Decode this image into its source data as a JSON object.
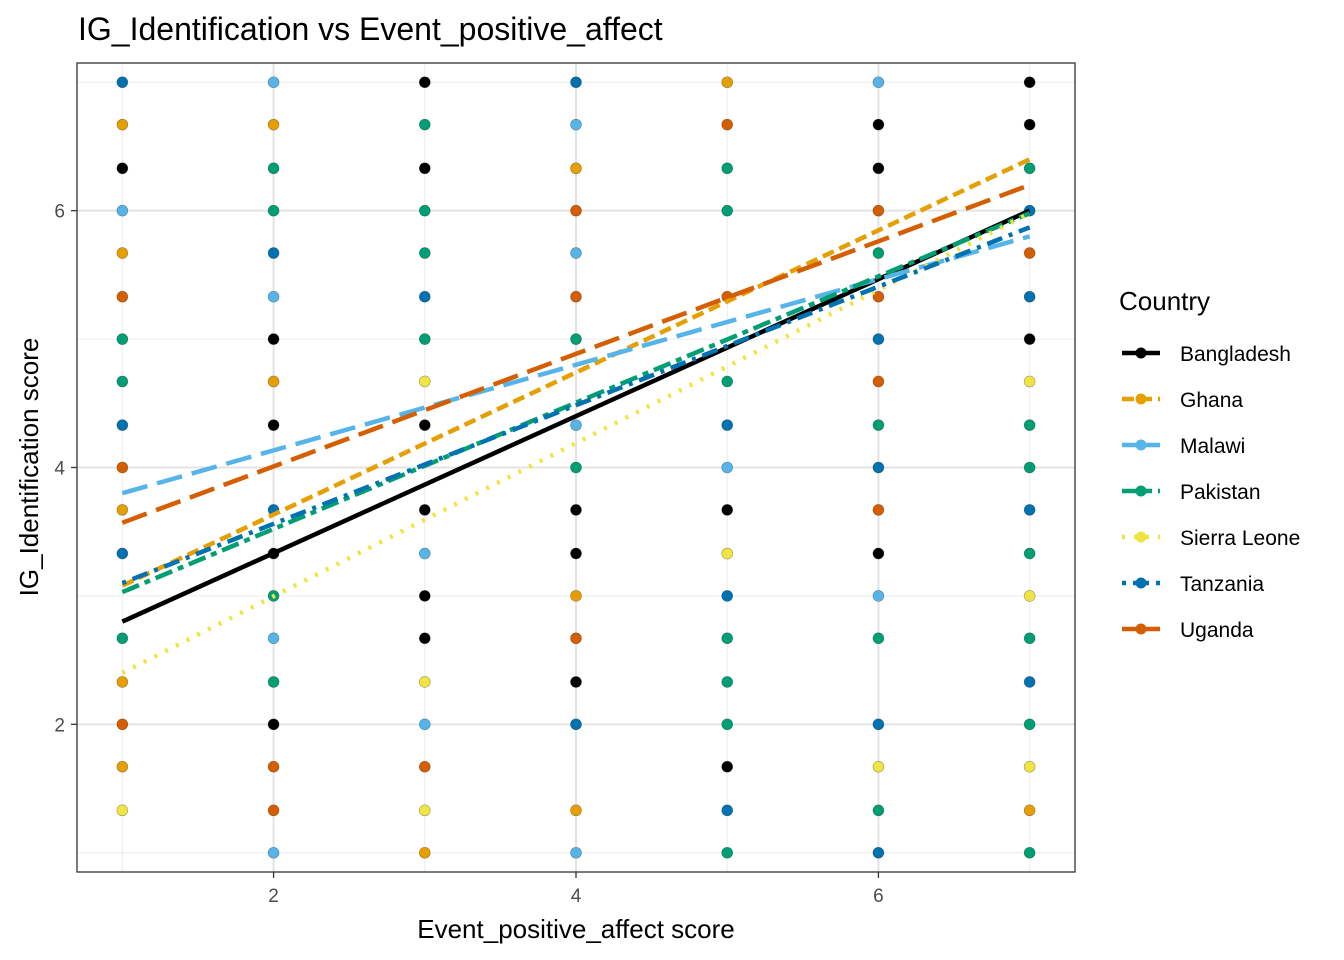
{
  "chart_data": {
    "type": "scatter",
    "title": "IG_Identification vs Event_positive_affect",
    "xlabel": "Event_positive_affect score",
    "ylabel": "IG_Identification score",
    "xlim": [
      0.7,
      7.3
    ],
    "ylim": [
      0.85,
      7.15
    ],
    "x_ticks": [
      2,
      4,
      6
    ],
    "y_ticks": [
      2,
      4,
      6
    ],
    "grid": true,
    "legend": {
      "title": "Country",
      "position": "right"
    },
    "series": [
      {
        "name": "Bangladesh",
        "color": "#000000",
        "dash": "solid",
        "trend": [
          [
            1,
            2.8
          ],
          [
            7,
            6.0
          ]
        ],
        "points": [
          [
            1,
            6.33
          ],
          [
            2,
            5.0
          ],
          [
            2,
            4.33
          ],
          [
            2,
            3.33
          ],
          [
            2,
            2.0
          ],
          [
            3,
            7.0
          ],
          [
            3,
            6.33
          ],
          [
            3,
            4.33
          ],
          [
            3,
            3.67
          ],
          [
            3,
            3.0
          ],
          [
            3,
            2.67
          ],
          [
            4,
            3.67
          ],
          [
            4,
            3.33
          ],
          [
            4,
            2.33
          ],
          [
            5,
            3.67
          ],
          [
            5,
            1.67
          ],
          [
            6,
            6.67
          ],
          [
            6,
            6.33
          ],
          [
            6,
            3.33
          ],
          [
            7,
            7.0
          ],
          [
            7,
            6.67
          ],
          [
            7,
            5.0
          ]
        ]
      },
      {
        "name": "Ghana",
        "color": "#E69F00",
        "dash": "dashed",
        "trend": [
          [
            1,
            3.08
          ],
          [
            7,
            6.4
          ]
        ],
        "points": [
          [
            1,
            6.67
          ],
          [
            1,
            5.67
          ],
          [
            1,
            3.67
          ],
          [
            1,
            2.33
          ],
          [
            1,
            1.67
          ],
          [
            2,
            6.67
          ],
          [
            2,
            4.67
          ],
          [
            3,
            1.0
          ],
          [
            4,
            6.33
          ],
          [
            4,
            3.0
          ],
          [
            4,
            1.33
          ],
          [
            5,
            7.0
          ],
          [
            7,
            1.33
          ]
        ]
      },
      {
        "name": "Malawi",
        "color": "#56B4E9",
        "dash": "longdash",
        "trend": [
          [
            1,
            3.8
          ],
          [
            7,
            5.8
          ]
        ],
        "points": [
          [
            1,
            6.0
          ],
          [
            2,
            7.0
          ],
          [
            2,
            5.33
          ],
          [
            2,
            2.67
          ],
          [
            2,
            1.0
          ],
          [
            3,
            3.33
          ],
          [
            3,
            2.0
          ],
          [
            4,
            6.67
          ],
          [
            4,
            5.67
          ],
          [
            4,
            4.33
          ],
          [
            4,
            1.0
          ],
          [
            5,
            4.0
          ],
          [
            6,
            7.0
          ],
          [
            6,
            3.0
          ]
        ]
      },
      {
        "name": "Pakistan",
        "color": "#009E73",
        "dash": "twodash",
        "trend": [
          [
            1,
            3.03
          ],
          [
            7,
            5.98
          ]
        ],
        "points": [
          [
            1,
            5.0
          ],
          [
            1,
            4.67
          ],
          [
            1,
            2.67
          ],
          [
            2,
            6.33
          ],
          [
            2,
            6.0
          ],
          [
            2,
            3.0
          ],
          [
            2,
            2.33
          ],
          [
            3,
            6.67
          ],
          [
            3,
            6.0
          ],
          [
            3,
            5.67
          ],
          [
            3,
            5.0
          ],
          [
            4,
            5.0
          ],
          [
            4,
            4.0
          ],
          [
            5,
            6.33
          ],
          [
            5,
            6.0
          ],
          [
            5,
            4.67
          ],
          [
            5,
            2.67
          ],
          [
            5,
            2.33
          ],
          [
            5,
            2.0
          ],
          [
            5,
            1.0
          ],
          [
            6,
            5.67
          ],
          [
            6,
            4.33
          ],
          [
            6,
            2.67
          ],
          [
            6,
            1.33
          ],
          [
            7,
            6.33
          ],
          [
            7,
            4.33
          ],
          [
            7,
            4.0
          ],
          [
            7,
            3.33
          ],
          [
            7,
            2.67
          ],
          [
            7,
            2.0
          ],
          [
            7,
            1.0
          ]
        ]
      },
      {
        "name": "Sierra Leone",
        "color": "#F0E442",
        "dash": "dotted",
        "trend": [
          [
            1,
            2.4
          ],
          [
            7,
            5.98
          ]
        ],
        "points": [
          [
            1,
            1.33
          ],
          [
            3,
            4.67
          ],
          [
            3,
            2.33
          ],
          [
            3,
            1.33
          ],
          [
            5,
            3.33
          ],
          [
            6,
            1.67
          ],
          [
            7,
            4.67
          ],
          [
            7,
            3.0
          ],
          [
            7,
            1.67
          ]
        ]
      },
      {
        "name": "Tanzania",
        "color": "#0072B2",
        "dash": "dotdash",
        "trend": [
          [
            1,
            3.1
          ],
          [
            7,
            5.87
          ]
        ],
        "points": [
          [
            1,
            7.0
          ],
          [
            1,
            4.33
          ],
          [
            1,
            3.33
          ],
          [
            2,
            5.67
          ],
          [
            2,
            3.67
          ],
          [
            3,
            5.33
          ],
          [
            4,
            7.0
          ],
          [
            4,
            2.0
          ],
          [
            5,
            4.33
          ],
          [
            5,
            3.0
          ],
          [
            5,
            1.33
          ],
          [
            6,
            5.0
          ],
          [
            6,
            4.0
          ],
          [
            6,
            2.0
          ],
          [
            6,
            1.0
          ],
          [
            7,
            6.0
          ],
          [
            7,
            5.33
          ],
          [
            7,
            3.67
          ],
          [
            7,
            2.33
          ]
        ]
      },
      {
        "name": "Uganda",
        "color": "#D55E00",
        "dash": "longdash",
        "trend": [
          [
            1,
            3.57
          ],
          [
            7,
            6.2
          ]
        ],
        "points": [
          [
            1,
            5.33
          ],
          [
            1,
            4.0
          ],
          [
            1,
            2.0
          ],
          [
            2,
            1.67
          ],
          [
            2,
            1.33
          ],
          [
            3,
            1.67
          ],
          [
            4,
            6.0
          ],
          [
            4,
            5.33
          ],
          [
            4,
            2.67
          ],
          [
            5,
            6.67
          ],
          [
            5,
            5.33
          ],
          [
            6,
            6.0
          ],
          [
            6,
            5.33
          ],
          [
            6,
            4.67
          ],
          [
            6,
            3.67
          ],
          [
            7,
            5.67
          ]
        ]
      }
    ]
  }
}
